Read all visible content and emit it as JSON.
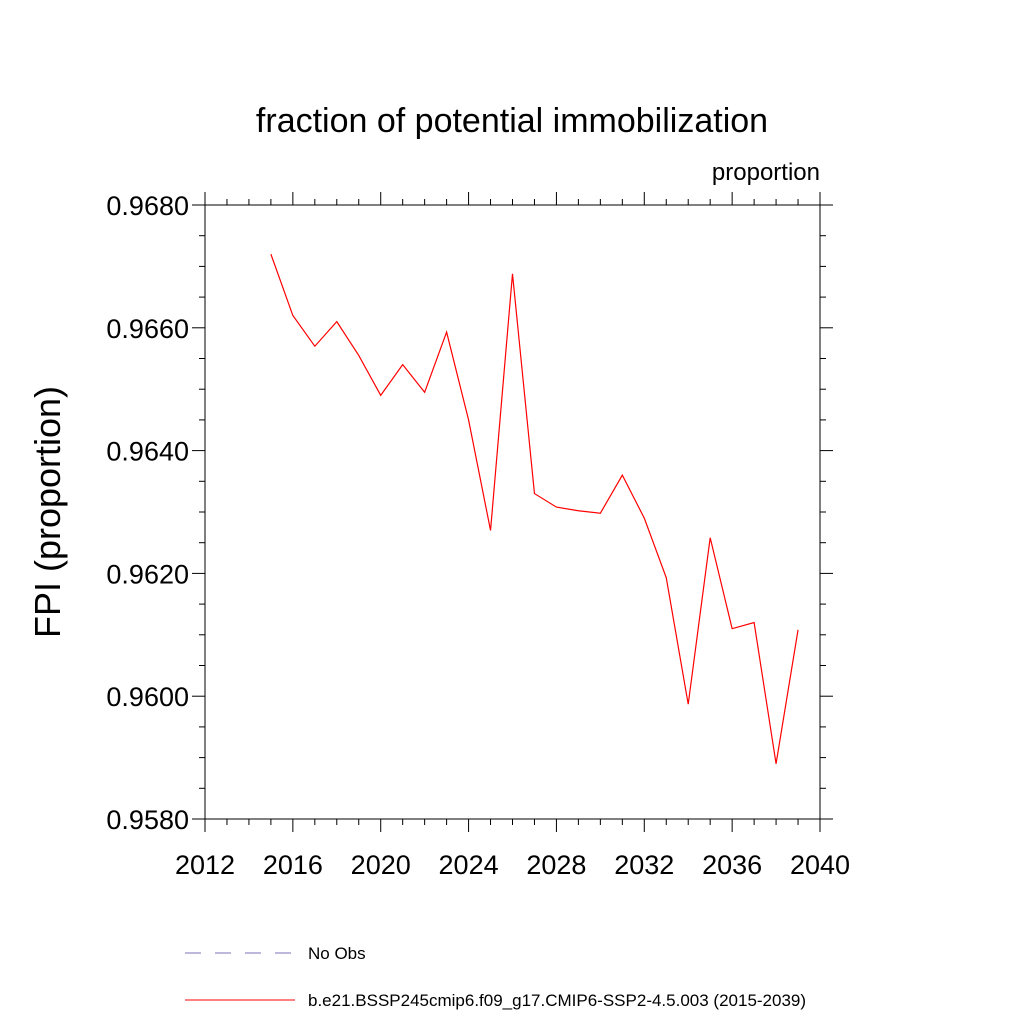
{
  "chart_data": {
    "type": "line",
    "title": "fraction of potential immobilization",
    "units_label": "proportion",
    "ylabel": "FPI  (proportion)",
    "xlabel": "",
    "xlim": [
      2012,
      2040
    ],
    "ylim": [
      0.958,
      0.968
    ],
    "x_ticks": [
      "2012",
      "2016",
      "2020",
      "2024",
      "2028",
      "2032",
      "2036",
      "2040"
    ],
    "y_ticks": [
      "0.9580",
      "0.9600",
      "0.9620",
      "0.9640",
      "0.9660",
      "0.9680"
    ],
    "series": [
      {
        "name": "b.e21.BSSP245cmip6.f09_g17.CMIP6-SSP2-4.5.003 (2015-2039)",
        "color": "#ff0000",
        "style": "solid",
        "x": [
          2015,
          2016,
          2017,
          2018,
          2019,
          2020,
          2021,
          2022,
          2023,
          2024,
          2025,
          2026,
          2027,
          2028,
          2029,
          2030,
          2031,
          2032,
          2033,
          2034,
          2035,
          2036,
          2037,
          2038,
          2039
        ],
        "values": [
          0.9672,
          0.9662,
          0.9657,
          0.9661,
          0.96555,
          0.9649,
          0.9654,
          0.96495,
          0.96593,
          0.9645,
          0.9627,
          0.96688,
          0.9633,
          0.96308,
          0.96302,
          0.96298,
          0.9636,
          0.9629,
          0.96193,
          0.95987,
          0.96258,
          0.9611,
          0.9612,
          0.9589,
          0.96108
        ]
      }
    ],
    "legend": [
      {
        "label": "No Obs",
        "color": "#7a73b8",
        "style": "dashed"
      },
      {
        "label": "b.e21.BSSP245cmip6.f09_g17.CMIP6-SSP2-4.5.003 (2015-2039)",
        "color": "#ff0000",
        "style": "solid"
      }
    ]
  }
}
